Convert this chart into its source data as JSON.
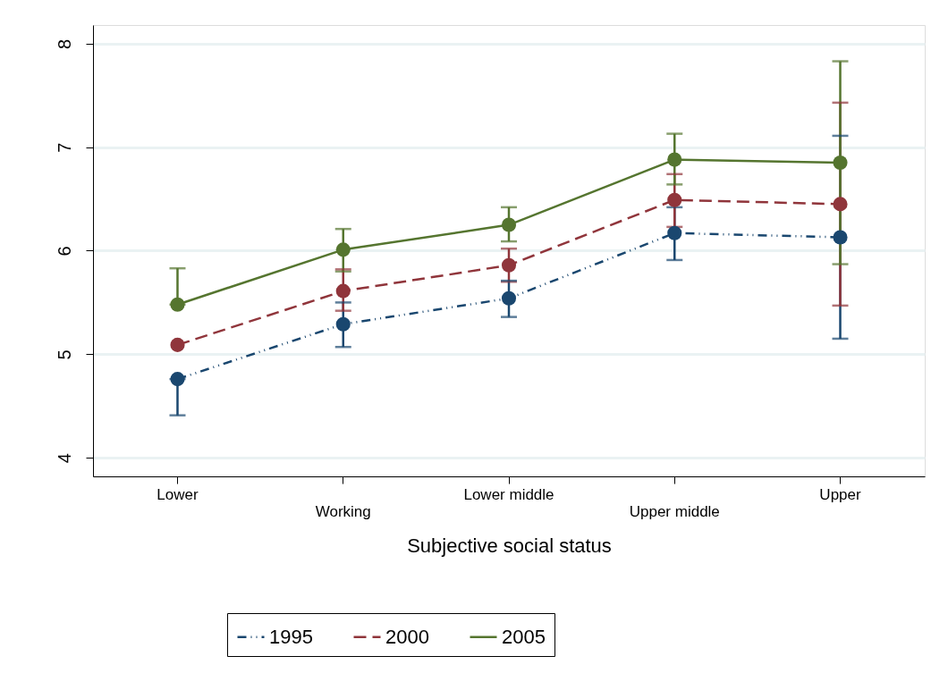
{
  "chart_data": {
    "type": "line",
    "xlabel": "Subjective social status",
    "categories": [
      "Lower",
      "Working",
      "Lower middle",
      "Upper middle",
      "Upper"
    ],
    "ylim": [
      3.82,
      8.18
    ],
    "yticks": [
      4,
      5,
      6,
      7,
      8
    ],
    "grid": "y",
    "legend": "bottom",
    "marker": "circle",
    "series": [
      {
        "name": "1995",
        "color": "#1a476f",
        "line_style": "dotted",
        "values": [
          4.76,
          5.29,
          5.54,
          6.17,
          6.13
        ],
        "errors": [
          [
            4.41,
            4.76
          ],
          [
            5.07,
            5.5
          ],
          [
            5.36,
            5.71
          ],
          [
            5.91,
            6.42
          ],
          [
            5.15,
            7.11
          ]
        ]
      },
      {
        "name": "2000",
        "color": "#90353b",
        "line_style": "dashed",
        "values": [
          5.09,
          5.61,
          5.86,
          6.49,
          6.45
        ],
        "errors": [
          null,
          [
            5.42,
            5.82
          ],
          [
            5.7,
            6.02
          ],
          [
            6.23,
            6.74
          ],
          [
            5.47,
            7.43
          ]
        ]
      },
      {
        "name": "2005",
        "color": "#55752f",
        "line_style": "solid",
        "values": [
          5.48,
          6.01,
          6.25,
          6.88,
          6.85
        ],
        "errors": [
          [
            5.48,
            5.83
          ],
          [
            5.8,
            6.21
          ],
          [
            6.09,
            6.42
          ],
          [
            6.64,
            7.13
          ],
          [
            5.87,
            7.83
          ]
        ]
      }
    ]
  }
}
